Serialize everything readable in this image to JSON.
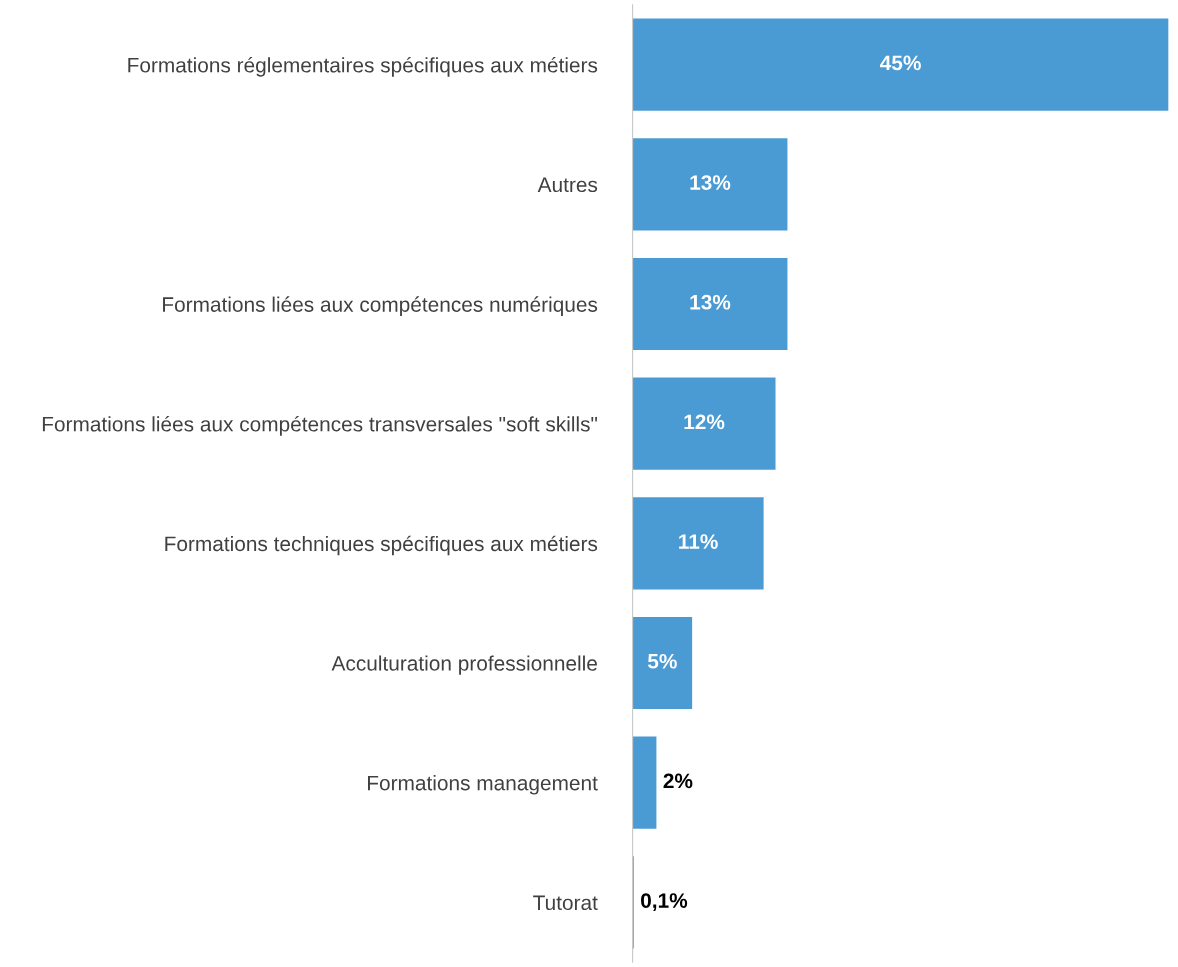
{
  "chart_data": {
    "type": "bar",
    "orientation": "horizontal",
    "categories": [
      "Formations réglementaires spécifiques aux métiers",
      "Autres",
      "Formations liées aux compétences numériques",
      "Formations liées aux compétences transversales \"soft skills\"",
      "Formations techniques spécifiques aux métiers",
      "Acculturation professionnelle",
      "Formations management",
      "Tutorat"
    ],
    "values": [
      45,
      13,
      13,
      12,
      11,
      5,
      2,
      0.1
    ],
    "value_labels": [
      "45%",
      "13%",
      "13%",
      "12%",
      "11%",
      "5%",
      "2%",
      "0,1%"
    ],
    "color": "#4a9bd4",
    "grid": false,
    "legend": false,
    "tick_labels": "y"
  }
}
